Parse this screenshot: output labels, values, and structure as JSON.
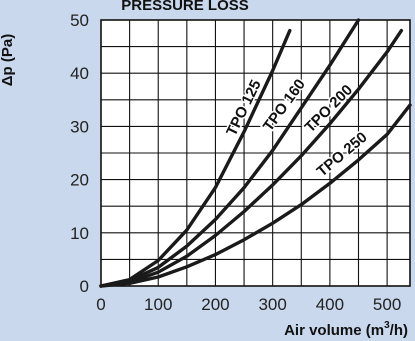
{
  "chart_data": {
    "type": "line",
    "title": "PRESSURE LOSS",
    "xlabel": "Air volume (m",
    "xlabel_sup": "3",
    "xlabel_tail": "/h)",
    "ylabel": "Δp (Pa)",
    "xlim": [
      0,
      540
    ],
    "ylim": [
      0,
      50
    ],
    "xticks": [
      "0",
      "100",
      "200",
      "300",
      "400",
      "500"
    ],
    "yticks": [
      "0",
      "10",
      "20",
      "30",
      "40",
      "50"
    ],
    "grid": true,
    "series": [
      {
        "name": "TPO 125",
        "x": [
          0,
          50,
          100,
          150,
          200,
          250,
          300,
          330
        ],
        "y": [
          0,
          1.2,
          4.8,
          10.5,
          18.5,
          29,
          40.5,
          48
        ]
      },
      {
        "name": "TPO 160",
        "x": [
          0,
          50,
          100,
          150,
          200,
          250,
          300,
          350,
          400,
          450
        ],
        "y": [
          0,
          1,
          3.5,
          7.5,
          12.5,
          18.5,
          25.5,
          33.5,
          41.5,
          50
        ]
      },
      {
        "name": "TPO 200",
        "x": [
          0,
          50,
          100,
          150,
          200,
          250,
          300,
          350,
          400,
          450,
          500,
          525
        ],
        "y": [
          0,
          0.7,
          2.6,
          5.6,
          9.5,
          14,
          19,
          24.5,
          30.5,
          37,
          44,
          48
        ]
      },
      {
        "name": "TPO 250",
        "x": [
          0,
          50,
          100,
          150,
          200,
          250,
          300,
          350,
          400,
          450,
          500,
          540
        ],
        "y": [
          0,
          0.5,
          1.7,
          3.6,
          5.9,
          8.7,
          11.8,
          15.3,
          19.3,
          23.7,
          28.5,
          34
        ]
      }
    ],
    "line_color": "#1a1a1a",
    "grid_color": "#111111",
    "plot_background": "#ffffff",
    "page_background": "#c9d8ec"
  }
}
